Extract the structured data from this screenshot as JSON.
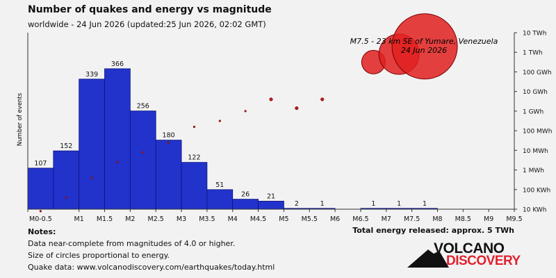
{
  "header": {
    "title": "Number of quakes and energy vs magnitude",
    "subtitle": "worldwide - 24 Jun 2026 (updated:25 Jun 2026, 02:02 GMT)"
  },
  "notes": {
    "heading": "Notes:",
    "line1": "Data near-complete from magnitudes of 4.0 or higher.",
    "line2": "Size of circles proportional to energy.",
    "line3": "Quake data: www.volcanodiscovery.com/earthquakes/today.html"
  },
  "total_energy": "Total energy released: approx. 5 TWh",
  "logo": {
    "line1": "VOLCANO",
    "line2": "DISCOVERY"
  },
  "colors": {
    "bar": "#2233cc",
    "bar_edge": "#0b117a",
    "circle": "#e02020",
    "dot": "#c01818",
    "background": "#f2f2f2"
  },
  "chart_data": {
    "type": "bar",
    "ylabel": "Number of events",
    "x_ticks": [
      "M0-0.5",
      "M1",
      "M1.5",
      "M2",
      "M2.5",
      "M3",
      "M3.5",
      "M4",
      "M4.5",
      "M5",
      "M5.5",
      "M6",
      "M6.5",
      "M7",
      "M7.5",
      "M8",
      "M8.5",
      "M9",
      "M9.5"
    ],
    "right_axis_ticks": [
      "10 TWh",
      "1 TWh",
      "100 GWh",
      "10 GWh",
      "1 GWh",
      "100 MWh",
      "10 MWh",
      "1 MWh",
      "100 KWh",
      "10 KWh"
    ],
    "bins": [
      {
        "lo": 0.0,
        "hi": 0.5,
        "count": 107
      },
      {
        "lo": 0.5,
        "hi": 1.0,
        "count": 152
      },
      {
        "lo": 1.0,
        "hi": 1.5,
        "count": 339
      },
      {
        "lo": 1.5,
        "hi": 2.0,
        "count": 366
      },
      {
        "lo": 2.0,
        "hi": 2.5,
        "count": 256
      },
      {
        "lo": 2.5,
        "hi": 3.0,
        "count": 180
      },
      {
        "lo": 3.0,
        "hi": 3.5,
        "count": 122
      },
      {
        "lo": 3.5,
        "hi": 4.0,
        "count": 51
      },
      {
        "lo": 4.0,
        "hi": 4.5,
        "count": 26
      },
      {
        "lo": 4.5,
        "hi": 5.0,
        "count": 21
      },
      {
        "lo": 5.0,
        "hi": 5.5,
        "count": 2
      },
      {
        "lo": 5.5,
        "hi": 6.0,
        "count": 1
      },
      {
        "lo": 6.5,
        "hi": 7.0,
        "count": 1
      },
      {
        "lo": 7.0,
        "hi": 7.5,
        "count": 1
      },
      {
        "lo": 7.5,
        "hi": 8.0,
        "count": 1
      }
    ],
    "energy_points": [
      {
        "mag": 0.25,
        "energy_log10_kwh": 0.9
      },
      {
        "mag": 0.75,
        "energy_log10_kwh": 1.6
      },
      {
        "mag": 1.25,
        "energy_log10_kwh": 2.6
      },
      {
        "mag": 1.75,
        "energy_log10_kwh": 3.4
      },
      {
        "mag": 2.25,
        "energy_log10_kwh": 3.9
      },
      {
        "mag": 2.75,
        "energy_log10_kwh": 4.4
      },
      {
        "mag": 3.25,
        "energy_log10_kwh": 5.2
      },
      {
        "mag": 3.75,
        "energy_log10_kwh": 5.5
      },
      {
        "mag": 4.25,
        "energy_log10_kwh": 6.0
      },
      {
        "mag": 4.75,
        "energy_log10_kwh": 6.6
      },
      {
        "mag": 5.25,
        "energy_log10_kwh": 6.15
      },
      {
        "mag": 5.75,
        "energy_log10_kwh": 6.6
      },
      {
        "mag": 6.75,
        "energy_log10_kwh": 8.5
      },
      {
        "mag": 7.25,
        "energy_log10_kwh": 8.9
      },
      {
        "mag": 7.75,
        "energy_log10_kwh": 9.3
      }
    ],
    "annotation": {
      "line1": "M7.5 - 23 km SE of Yumare, Venezuela",
      "line2": "24 Jun 2026"
    }
  }
}
